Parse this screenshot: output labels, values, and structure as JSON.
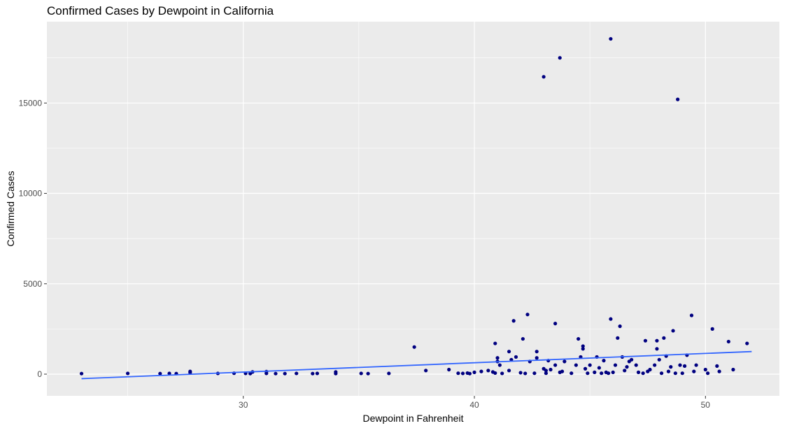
{
  "chart_data": {
    "type": "scatter",
    "title": "Confirmed Cases by Dewpoint in California",
    "xlabel": "Dewpoint in Fahrenheit",
    "ylabel": "Confirmed Cases",
    "xlim": [
      21.5,
      53.2
    ],
    "ylim": [
      -1200,
      19500
    ],
    "xticks": [
      30,
      40,
      50
    ],
    "yticks": [
      0,
      5000,
      10000,
      15000
    ],
    "grid": true,
    "point_color": "#000080",
    "trend_color": "#3366ff",
    "panel_color": "#ebebeb",
    "trend_line": {
      "x": [
        23,
        52
      ],
      "y": [
        -250,
        1250
      ]
    },
    "points": [
      {
        "x": 23.0,
        "y": 30
      },
      {
        "x": 25.0,
        "y": 40
      },
      {
        "x": 26.4,
        "y": 30
      },
      {
        "x": 26.8,
        "y": 40
      },
      {
        "x": 27.1,
        "y": 30
      },
      {
        "x": 27.7,
        "y": 80
      },
      {
        "x": 27.7,
        "y": 150
      },
      {
        "x": 28.9,
        "y": 40
      },
      {
        "x": 29.6,
        "y": 50
      },
      {
        "x": 30.1,
        "y": 40
      },
      {
        "x": 30.3,
        "y": 30
      },
      {
        "x": 30.4,
        "y": 120
      },
      {
        "x": 31.0,
        "y": 40
      },
      {
        "x": 31.0,
        "y": 140
      },
      {
        "x": 31.4,
        "y": 30
      },
      {
        "x": 31.8,
        "y": 30
      },
      {
        "x": 32.3,
        "y": 40
      },
      {
        "x": 33.0,
        "y": 30
      },
      {
        "x": 33.2,
        "y": 40
      },
      {
        "x": 34.0,
        "y": 30
      },
      {
        "x": 34.0,
        "y": 120
      },
      {
        "x": 35.1,
        "y": 40
      },
      {
        "x": 35.4,
        "y": 30
      },
      {
        "x": 36.3,
        "y": 40
      },
      {
        "x": 37.4,
        "y": 1500
      },
      {
        "x": 37.9,
        "y": 200
      },
      {
        "x": 38.9,
        "y": 250
      },
      {
        "x": 39.3,
        "y": 50
      },
      {
        "x": 39.5,
        "y": 40
      },
      {
        "x": 39.7,
        "y": 60
      },
      {
        "x": 39.8,
        "y": 30
      },
      {
        "x": 40.0,
        "y": 100
      },
      {
        "x": 40.3,
        "y": 150
      },
      {
        "x": 40.6,
        "y": 200
      },
      {
        "x": 40.8,
        "y": 120
      },
      {
        "x": 40.9,
        "y": 60
      },
      {
        "x": 40.9,
        "y": 1700
      },
      {
        "x": 41.0,
        "y": 900
      },
      {
        "x": 41.0,
        "y": 700
      },
      {
        "x": 41.1,
        "y": 500
      },
      {
        "x": 41.2,
        "y": 40
      },
      {
        "x": 41.5,
        "y": 200
      },
      {
        "x": 41.5,
        "y": 1250
      },
      {
        "x": 41.6,
        "y": 800
      },
      {
        "x": 41.7,
        "y": 2950
      },
      {
        "x": 41.8,
        "y": 950
      },
      {
        "x": 42.0,
        "y": 80
      },
      {
        "x": 42.1,
        "y": 1950
      },
      {
        "x": 42.2,
        "y": 40
      },
      {
        "x": 42.3,
        "y": 3300
      },
      {
        "x": 42.4,
        "y": 700
      },
      {
        "x": 42.6,
        "y": 50
      },
      {
        "x": 42.7,
        "y": 1250
      },
      {
        "x": 42.7,
        "y": 900
      },
      {
        "x": 43.0,
        "y": 16450
      },
      {
        "x": 43.0,
        "y": 300
      },
      {
        "x": 43.1,
        "y": 200
      },
      {
        "x": 43.1,
        "y": 50
      },
      {
        "x": 43.2,
        "y": 750
      },
      {
        "x": 43.3,
        "y": 250
      },
      {
        "x": 43.5,
        "y": 2800
      },
      {
        "x": 43.5,
        "y": 500
      },
      {
        "x": 43.7,
        "y": 17500
      },
      {
        "x": 43.7,
        "y": 100
      },
      {
        "x": 43.8,
        "y": 150
      },
      {
        "x": 43.9,
        "y": 700
      },
      {
        "x": 44.2,
        "y": 50
      },
      {
        "x": 44.4,
        "y": 500
      },
      {
        "x": 44.5,
        "y": 1950
      },
      {
        "x": 44.6,
        "y": 950
      },
      {
        "x": 44.7,
        "y": 1550
      },
      {
        "x": 44.7,
        "y": 1400
      },
      {
        "x": 44.8,
        "y": 300
      },
      {
        "x": 44.9,
        "y": 50
      },
      {
        "x": 45.0,
        "y": 500
      },
      {
        "x": 45.2,
        "y": 100
      },
      {
        "x": 45.3,
        "y": 950
      },
      {
        "x": 45.4,
        "y": 350
      },
      {
        "x": 45.5,
        "y": 50
      },
      {
        "x": 45.6,
        "y": 750
      },
      {
        "x": 45.7,
        "y": 100
      },
      {
        "x": 45.8,
        "y": 50
      },
      {
        "x": 45.9,
        "y": 18550
      },
      {
        "x": 45.9,
        "y": 3050
      },
      {
        "x": 46.0,
        "y": 100
      },
      {
        "x": 46.1,
        "y": 500
      },
      {
        "x": 46.2,
        "y": 2000
      },
      {
        "x": 46.3,
        "y": 2650
      },
      {
        "x": 46.4,
        "y": 950
      },
      {
        "x": 46.5,
        "y": 200
      },
      {
        "x": 46.6,
        "y": 400
      },
      {
        "x": 46.7,
        "y": 700
      },
      {
        "x": 46.8,
        "y": 800
      },
      {
        "x": 47.0,
        "y": 500
      },
      {
        "x": 47.1,
        "y": 100
      },
      {
        "x": 47.3,
        "y": 50
      },
      {
        "x": 47.4,
        "y": 1850
      },
      {
        "x": 47.5,
        "y": 150
      },
      {
        "x": 47.6,
        "y": 250
      },
      {
        "x": 47.8,
        "y": 500
      },
      {
        "x": 47.9,
        "y": 1850
      },
      {
        "x": 47.9,
        "y": 1400
      },
      {
        "x": 48.0,
        "y": 800
      },
      {
        "x": 48.1,
        "y": 50
      },
      {
        "x": 48.2,
        "y": 2000
      },
      {
        "x": 48.3,
        "y": 1000
      },
      {
        "x": 48.4,
        "y": 150
      },
      {
        "x": 48.5,
        "y": 400
      },
      {
        "x": 48.6,
        "y": 2400
      },
      {
        "x": 48.7,
        "y": 50
      },
      {
        "x": 48.8,
        "y": 15200
      },
      {
        "x": 48.9,
        "y": 500
      },
      {
        "x": 49.0,
        "y": 50
      },
      {
        "x": 49.1,
        "y": 450
      },
      {
        "x": 49.2,
        "y": 1050
      },
      {
        "x": 49.4,
        "y": 3250
      },
      {
        "x": 49.5,
        "y": 150
      },
      {
        "x": 49.6,
        "y": 500
      },
      {
        "x": 50.0,
        "y": 250
      },
      {
        "x": 50.1,
        "y": 50
      },
      {
        "x": 50.3,
        "y": 2500
      },
      {
        "x": 50.5,
        "y": 450
      },
      {
        "x": 50.6,
        "y": 150
      },
      {
        "x": 51.0,
        "y": 1800
      },
      {
        "x": 51.2,
        "y": 250
      },
      {
        "x": 51.8,
        "y": 1700
      }
    ]
  }
}
